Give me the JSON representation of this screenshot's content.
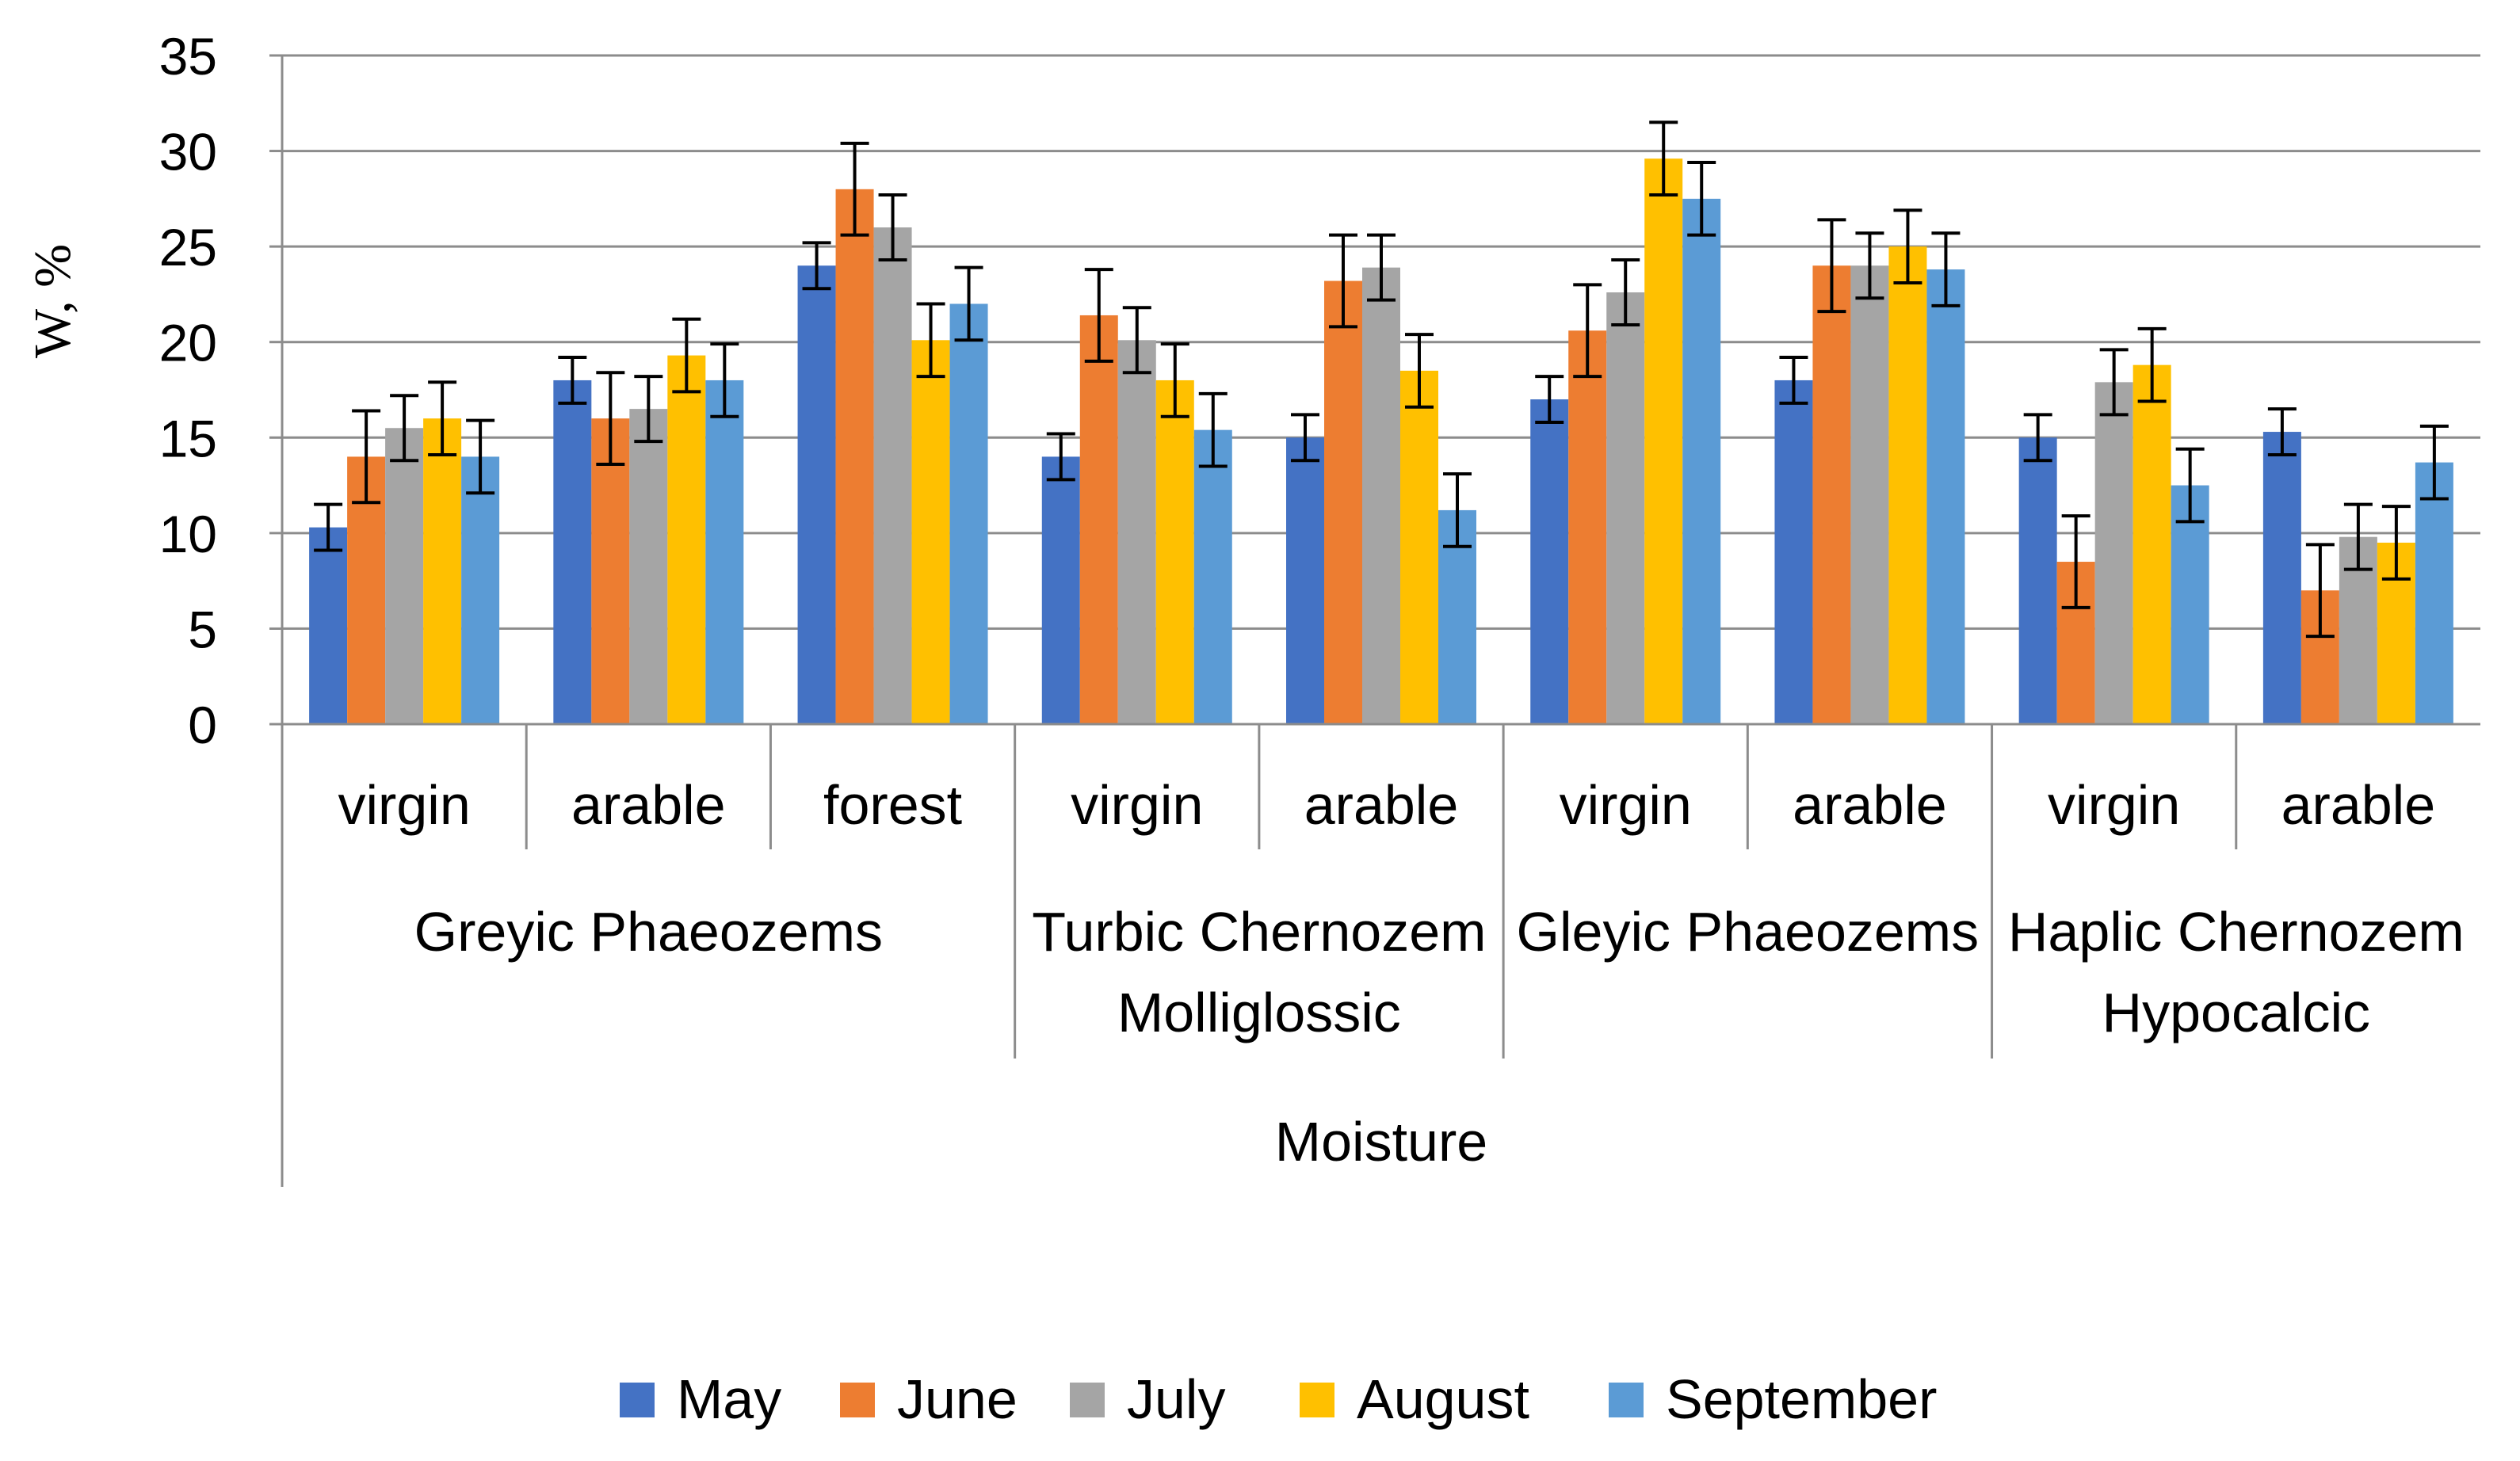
{
  "chart_data": {
    "type": "bar",
    "title": "",
    "ylabel": "W, %",
    "xlabel": "Moisture",
    "ylim": [
      0,
      35
    ],
    "yticks": [
      0,
      5,
      10,
      15,
      20,
      25,
      30,
      35
    ],
    "grid": true,
    "legend_position": "bottom",
    "soil_groups": [
      {
        "lines": [
          "Greyic Phaeozems"
        ],
        "span": [
          0,
          3
        ]
      },
      {
        "lines": [
          "Turbic Chernozem",
          "Molliglossic"
        ],
        "span": [
          3,
          5
        ]
      },
      {
        "lines": [
          "Gleyic Phaeozems"
        ],
        "span": [
          5,
          7
        ]
      },
      {
        "lines": [
          "Haplic Chernozem",
          "Hypocalcic"
        ],
        "span": [
          7,
          9
        ]
      }
    ],
    "categories": [
      "virgin",
      "arable",
      "forest",
      "virgin",
      "arable",
      "virgin",
      "arable",
      "virgin",
      "arable"
    ],
    "series": [
      {
        "name": "May",
        "color": "#4472C4",
        "values": [
          10.3,
          18.0,
          24.0,
          14.0,
          15.0,
          17.0,
          18.0,
          15.0,
          15.3
        ],
        "errors": [
          1.2,
          1.2,
          1.2,
          1.2,
          1.2,
          1.2,
          1.2,
          1.2,
          1.2
        ]
      },
      {
        "name": "June",
        "color": "#ED7D31",
        "values": [
          14.0,
          16.0,
          28.0,
          21.4,
          23.2,
          20.6,
          24.0,
          8.5,
          7.0
        ],
        "errors": [
          2.4,
          2.4,
          2.4,
          2.4,
          2.4,
          2.4,
          2.4,
          2.4,
          2.4
        ]
      },
      {
        "name": "July",
        "color": "#A5A5A5",
        "values": [
          15.5,
          16.5,
          26.0,
          20.1,
          23.9,
          22.6,
          24.0,
          17.9,
          9.8
        ],
        "errors": [
          1.7,
          1.7,
          1.7,
          1.7,
          1.7,
          1.7,
          1.7,
          1.7,
          1.7
        ]
      },
      {
        "name": "August",
        "color": "#FFC000",
        "values": [
          16.0,
          19.3,
          20.1,
          18.0,
          18.5,
          29.6,
          25.0,
          18.8,
          9.5
        ],
        "errors": [
          1.9,
          1.9,
          1.9,
          1.9,
          1.9,
          1.9,
          1.9,
          1.9,
          1.9
        ]
      },
      {
        "name": "September",
        "color": "#5B9BD5",
        "values": [
          14.0,
          18.0,
          22.0,
          15.4,
          11.2,
          27.5,
          23.8,
          12.5,
          13.7
        ],
        "errors": [
          1.9,
          1.9,
          1.9,
          1.9,
          1.9,
          1.9,
          1.9,
          1.9,
          1.9
        ]
      }
    ]
  }
}
